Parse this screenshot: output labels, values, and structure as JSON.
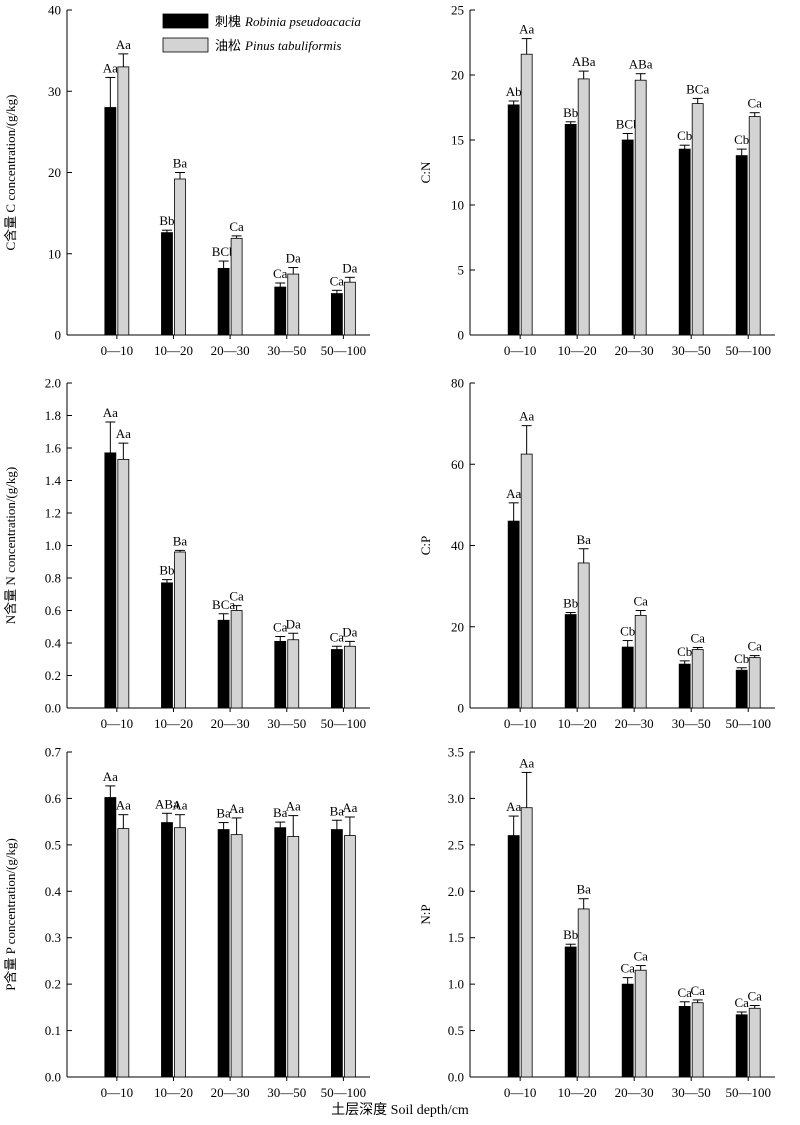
{
  "figure": {
    "x_caption": "土层深度 Soil depth/cm",
    "legend": [
      {
        "label_cn": "刺槐",
        "label_latin": "Robinia pseudoacacia",
        "color": "#000000"
      },
      {
        "label_cn": "油松",
        "label_latin": "Pinus tabuliformis",
        "color": "#d3d3d3"
      }
    ]
  },
  "chart_data": [
    {
      "type": "bar",
      "categories": [
        "0—10",
        "10—20",
        "20—30",
        "30—50",
        "50—100"
      ],
      "ylabel": "C含量 C concentration/(g/kg)",
      "ylim": [
        0,
        40
      ],
      "yticks": [
        0,
        10,
        20,
        30,
        40
      ],
      "series": [
        {
          "name": "刺槐 Robinia pseudoacacia",
          "color": "#000000",
          "values": [
            28.0,
            12.6,
            8.2,
            5.9,
            5.1
          ],
          "errors": [
            3.7,
            0.3,
            0.9,
            0.5,
            0.4
          ],
          "labels": [
            "Aa",
            "Bb",
            "BCb",
            "Ca",
            "Ca"
          ]
        },
        {
          "name": "油松 Pinus tabuliformis",
          "color": "#d3d3d3",
          "values": [
            33.0,
            19.2,
            11.9,
            7.5,
            6.5
          ],
          "errors": [
            1.6,
            0.8,
            0.3,
            0.8,
            0.6
          ],
          "labels": [
            "Aa",
            "Ba",
            "Ca",
            "Da",
            "Da"
          ]
        }
      ]
    },
    {
      "type": "bar",
      "categories": [
        "0—10",
        "10—20",
        "20—30",
        "30—50",
        "50—100"
      ],
      "ylabel": "C:N",
      "ylim": [
        0,
        25
      ],
      "yticks": [
        0,
        5,
        10,
        15,
        20,
        25
      ],
      "series": [
        {
          "name": "刺槐 Robinia pseudoacacia",
          "color": "#000000",
          "values": [
            17.7,
            16.2,
            15.0,
            14.3,
            13.8
          ],
          "errors": [
            0.3,
            0.2,
            0.5,
            0.3,
            0.5
          ],
          "labels": [
            "Ab",
            "Bb",
            "BCb",
            "Cb",
            "Cb"
          ]
        },
        {
          "name": "油松 Pinus tabuliformis",
          "color": "#d3d3d3",
          "values": [
            21.6,
            19.7,
            19.6,
            17.8,
            16.8
          ],
          "errors": [
            1.2,
            0.6,
            0.5,
            0.4,
            0.3
          ],
          "labels": [
            "Aa",
            "ABa",
            "ABa",
            "BCa",
            "Ca"
          ]
        }
      ]
    },
    {
      "type": "bar",
      "categories": [
        "0—10",
        "10—20",
        "20—30",
        "30—50",
        "50—100"
      ],
      "ylabel": "N含量 N concentration/(g/kg)",
      "ylim": [
        0,
        2.0
      ],
      "yticks": [
        0,
        0.2,
        0.4,
        0.6,
        0.8,
        1.0,
        1.2,
        1.4,
        1.6,
        1.8,
        2.0
      ],
      "series": [
        {
          "name": "刺槐 Robinia pseudoacacia",
          "color": "#000000",
          "values": [
            1.57,
            0.77,
            0.54,
            0.41,
            0.36
          ],
          "errors": [
            0.19,
            0.02,
            0.04,
            0.03,
            0.02
          ],
          "labels": [
            "Aa",
            "Bb",
            "BCa",
            "Ca",
            "Ca"
          ]
        },
        {
          "name": "油松 Pinus tabuliformis",
          "color": "#d3d3d3",
          "values": [
            1.53,
            0.96,
            0.6,
            0.42,
            0.38
          ],
          "errors": [
            0.1,
            0.01,
            0.03,
            0.04,
            0.03
          ],
          "labels": [
            "Aa",
            "Ba",
            "Ca",
            "Da",
            "Da"
          ]
        }
      ]
    },
    {
      "type": "bar",
      "categories": [
        "0—10",
        "10—20",
        "20—30",
        "30—50",
        "50—100"
      ],
      "ylabel": "C:P",
      "ylim": [
        0,
        80
      ],
      "yticks": [
        0,
        20,
        40,
        60,
        80
      ],
      "series": [
        {
          "name": "刺槐 Robinia pseudoacacia",
          "color": "#000000",
          "values": [
            46.0,
            23.0,
            15.0,
            10.8,
            9.3
          ],
          "errors": [
            4.5,
            0.5,
            1.6,
            0.8,
            0.6
          ],
          "labels": [
            "Aa",
            "Bb",
            "Cb",
            "Cb",
            "Cb"
          ]
        },
        {
          "name": "油松 Pinus tabuliformis",
          "color": "#d3d3d3",
          "values": [
            62.5,
            35.7,
            22.8,
            14.4,
            12.4
          ],
          "errors": [
            7.0,
            3.5,
            1.2,
            0.5,
            0.5
          ],
          "labels": [
            "Aa",
            "Ba",
            "Ca",
            "Ca",
            "Ca"
          ]
        }
      ]
    },
    {
      "type": "bar",
      "categories": [
        "0—10",
        "10—20",
        "20—30",
        "30—50",
        "50—100"
      ],
      "ylabel": "P含量 P concentration/(g/kg)",
      "ylim": [
        0,
        0.7
      ],
      "yticks": [
        0,
        0.1,
        0.2,
        0.3,
        0.4,
        0.5,
        0.6,
        0.7
      ],
      "series": [
        {
          "name": "刺槐 Robinia pseudoacacia",
          "color": "#000000",
          "values": [
            0.602,
            0.548,
            0.533,
            0.537,
            0.533
          ],
          "errors": [
            0.025,
            0.02,
            0.015,
            0.012,
            0.02
          ],
          "labels": [
            "Aa",
            "ABa",
            "Ba",
            "Ba",
            "Ba"
          ]
        },
        {
          "name": "油松 Pinus tabuliformis",
          "color": "#d3d3d3",
          "values": [
            0.535,
            0.537,
            0.522,
            0.518,
            0.52
          ],
          "errors": [
            0.03,
            0.028,
            0.036,
            0.045,
            0.04
          ],
          "labels": [
            "Aa",
            "Aa",
            "Aa",
            "Aa",
            "Aa"
          ]
        }
      ]
    },
    {
      "type": "bar",
      "categories": [
        "0—10",
        "10—20",
        "20—30",
        "30—50",
        "50—100"
      ],
      "ylabel": "N:P",
      "ylim": [
        0,
        3.5
      ],
      "yticks": [
        0,
        0.5,
        1.0,
        1.5,
        2.0,
        2.5,
        3.0,
        3.5
      ],
      "series": [
        {
          "name": "刺槐 Robinia pseudoacacia",
          "color": "#000000",
          "values": [
            2.6,
            1.4,
            1.0,
            0.76,
            0.67
          ],
          "errors": [
            0.21,
            0.03,
            0.07,
            0.05,
            0.03
          ],
          "labels": [
            "Aa",
            "Bb",
            "Ca",
            "Ca",
            "Ca"
          ]
        },
        {
          "name": "油松 Pinus tabuliformis",
          "color": "#d3d3d3",
          "values": [
            2.9,
            1.81,
            1.15,
            0.8,
            0.74
          ],
          "errors": [
            0.38,
            0.11,
            0.05,
            0.03,
            0.03
          ],
          "labels": [
            "Aa",
            "Ba",
            "Ca",
            "Ca",
            "Ca"
          ]
        }
      ]
    }
  ]
}
